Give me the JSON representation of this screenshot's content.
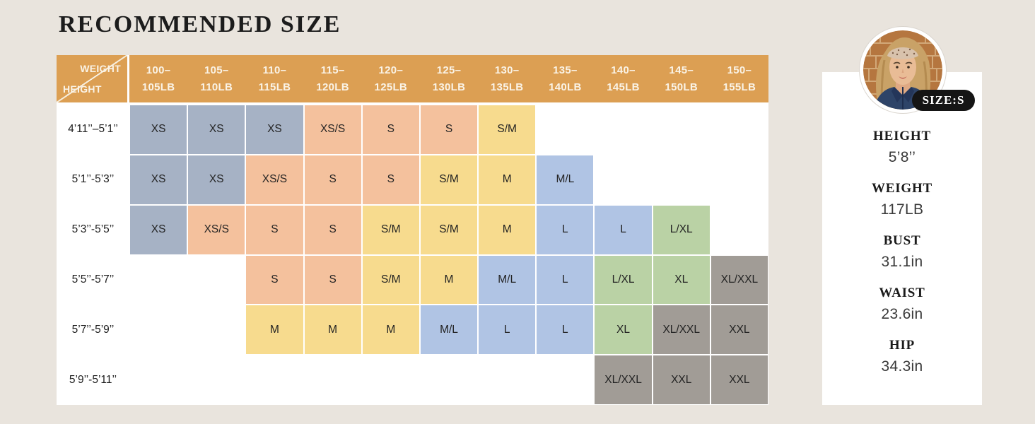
{
  "title": "RECOMMENDED SIZE",
  "colors": {
    "page_bg": "#E9E4DD",
    "panel_bg": "#FFFFFF",
    "header_bg": "#DC9F53",
    "header_text": "#FAF3E6",
    "cell_text": "#232323",
    "badge_bg": "#151515",
    "badge_text": "#FFFFFF",
    "bluegray": "#A6B2C5",
    "peach": "#F4C19D",
    "yellow": "#F7DB8E",
    "periwinkle": "#B0C4E4",
    "green": "#BAD2A5",
    "gray": "#A19C96"
  },
  "table": {
    "corner": {
      "top": "WEIGHT",
      "bottom": "HEIGHT"
    },
    "weights": [
      {
        "line1": "100–",
        "line2": "105LB"
      },
      {
        "line1": "105–",
        "line2": "110LB"
      },
      {
        "line1": "110–",
        "line2": "115LB"
      },
      {
        "line1": "115–",
        "line2": "120LB"
      },
      {
        "line1": "120–",
        "line2": "125LB"
      },
      {
        "line1": "125–",
        "line2": "130LB"
      },
      {
        "line1": "130–",
        "line2": "135LB"
      },
      {
        "line1": "135–",
        "line2": "140LB"
      },
      {
        "line1": "140–",
        "line2": "145LB"
      },
      {
        "line1": "145–",
        "line2": "150LB"
      },
      {
        "line1": "150–",
        "line2": "155LB"
      }
    ],
    "rows": [
      {
        "height": "4’11’’–5’1’’",
        "cells": [
          {
            "size": "XS",
            "color": "bluegray"
          },
          {
            "size": "XS",
            "color": "bluegray"
          },
          {
            "size": "XS",
            "color": "bluegray"
          },
          {
            "size": "XS/S",
            "color": "peach"
          },
          {
            "size": "S",
            "color": "peach"
          },
          {
            "size": "S",
            "color": "peach"
          },
          {
            "size": "S/M",
            "color": "yellow"
          },
          null,
          null,
          null,
          null
        ]
      },
      {
        "height": "5’1’’-5’3’’",
        "cells": [
          {
            "size": "XS",
            "color": "bluegray"
          },
          {
            "size": "XS",
            "color": "bluegray"
          },
          {
            "size": "XS/S",
            "color": "peach"
          },
          {
            "size": "S",
            "color": "peach"
          },
          {
            "size": "S",
            "color": "peach"
          },
          {
            "size": "S/M",
            "color": "yellow"
          },
          {
            "size": "M",
            "color": "yellow"
          },
          {
            "size": "M/L",
            "color": "periwinkle"
          },
          null,
          null,
          null
        ]
      },
      {
        "height": "5’3’’-5’5’’",
        "cells": [
          {
            "size": "XS",
            "color": "bluegray"
          },
          {
            "size": "XS/S",
            "color": "peach"
          },
          {
            "size": "S",
            "color": "peach"
          },
          {
            "size": "S",
            "color": "peach"
          },
          {
            "size": "S/M",
            "color": "yellow"
          },
          {
            "size": "S/M",
            "color": "yellow"
          },
          {
            "size": "M",
            "color": "yellow"
          },
          {
            "size": "L",
            "color": "periwinkle"
          },
          {
            "size": "L",
            "color": "periwinkle"
          },
          {
            "size": "L/XL",
            "color": "green"
          },
          null
        ]
      },
      {
        "height": "5’5’’-5’7’’",
        "cells": [
          null,
          null,
          {
            "size": "S",
            "color": "peach"
          },
          {
            "size": "S",
            "color": "peach"
          },
          {
            "size": "S/M",
            "color": "yellow"
          },
          {
            "size": "M",
            "color": "yellow"
          },
          {
            "size": "M/L",
            "color": "periwinkle"
          },
          {
            "size": "L",
            "color": "periwinkle"
          },
          {
            "size": "L/XL",
            "color": "green"
          },
          {
            "size": "XL",
            "color": "green"
          },
          {
            "size": "XL/XXL",
            "color": "gray"
          }
        ]
      },
      {
        "height": "5’7’’-5’9’’",
        "cells": [
          null,
          null,
          {
            "size": "M",
            "color": "yellow"
          },
          {
            "size": "M",
            "color": "yellow"
          },
          {
            "size": "M",
            "color": "yellow"
          },
          {
            "size": "M/L",
            "color": "periwinkle"
          },
          {
            "size": "L",
            "color": "periwinkle"
          },
          {
            "size": "L",
            "color": "periwinkle"
          },
          {
            "size": "XL",
            "color": "green"
          },
          {
            "size": "XL/XXL",
            "color": "gray"
          },
          {
            "size": "XXL",
            "color": "gray"
          }
        ]
      },
      {
        "height": "5’9’’-5’11’’",
        "cells": [
          null,
          null,
          null,
          null,
          null,
          null,
          null,
          null,
          {
            "size": "XL/XXL",
            "color": "gray"
          },
          {
            "size": "XXL",
            "color": "gray"
          },
          {
            "size": "XXL",
            "color": "gray"
          }
        ]
      }
    ]
  },
  "model_card": {
    "badge": "SIZE:S",
    "avatar": "model-photo",
    "measurements": [
      {
        "label": "HEIGHT",
        "value": "5’8’’"
      },
      {
        "label": "WEIGHT",
        "value": "117LB"
      },
      {
        "label": "BUST",
        "value": "31.1in"
      },
      {
        "label": "WAIST",
        "value": "23.6in"
      },
      {
        "label": "HIP",
        "value": "34.3in"
      }
    ]
  },
  "chart_data": {
    "type": "table",
    "title": "RECOMMENDED SIZE",
    "column_header_label": "WEIGHT",
    "row_header_label": "HEIGHT",
    "columns": [
      "100–105LB",
      "105–110LB",
      "110–115LB",
      "115–120LB",
      "120–125LB",
      "125–130LB",
      "130–135LB",
      "135–140LB",
      "140–145LB",
      "145–150LB",
      "150–155LB"
    ],
    "rows": [
      "4’11’’–5’1’’",
      "5’1’’-5’3’’",
      "5’3’’-5’5’’",
      "5’5’’-5’7’’",
      "5’7’’-5’9’’",
      "5’9’’-5’11’’"
    ],
    "values": [
      [
        "XS",
        "XS",
        "XS",
        "XS/S",
        "S",
        "S",
        "S/M",
        "",
        "",
        "",
        ""
      ],
      [
        "XS",
        "XS",
        "XS/S",
        "S",
        "S",
        "S/M",
        "M",
        "M/L",
        "",
        "",
        ""
      ],
      [
        "XS",
        "XS/S",
        "S",
        "S",
        "S/M",
        "S/M",
        "M",
        "L",
        "L",
        "L/XL",
        ""
      ],
      [
        "",
        "",
        "S",
        "S",
        "S/M",
        "M",
        "M/L",
        "L",
        "L/XL",
        "XL",
        "XL/XXL"
      ],
      [
        "",
        "",
        "M",
        "M",
        "M",
        "M/L",
        "L",
        "L",
        "XL",
        "XL/XXL",
        "XXL"
      ],
      [
        "",
        "",
        "",
        "",
        "",
        "",
        "",
        "",
        "XL/XXL",
        "XXL",
        "XXL"
      ]
    ],
    "model_reference": {
      "size": "S",
      "height": "5’8’’",
      "weight": "117LB",
      "bust": "31.1in",
      "waist": "23.6in",
      "hip": "34.3in"
    }
  }
}
